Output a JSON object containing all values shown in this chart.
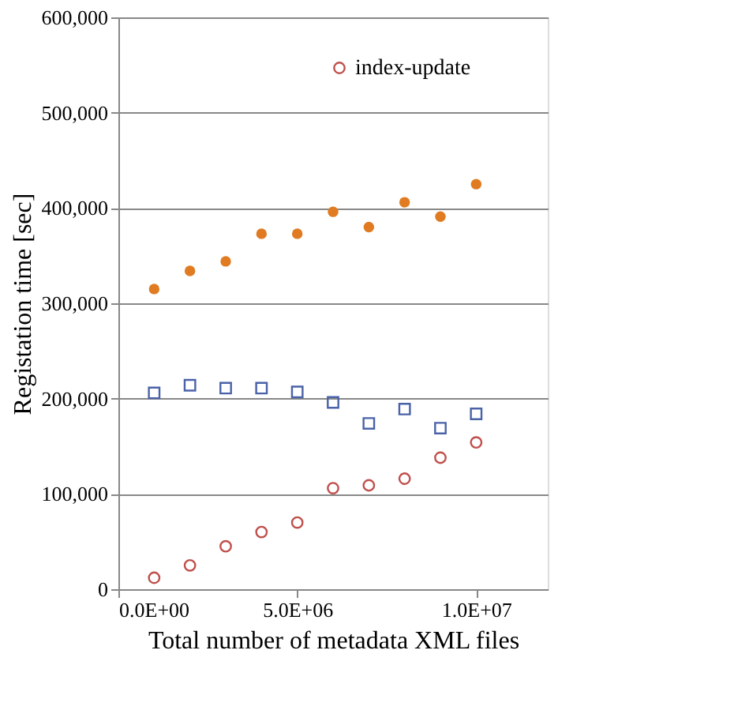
{
  "chart_data": {
    "type": "scatter",
    "xlabel": "Total number of metadata XML files",
    "ylabel": "Registation time [sec]",
    "x": [
      1000000,
      2000000,
      3000000,
      4000000,
      5000000,
      6000000,
      7000000,
      8000000,
      9000000,
      10000000
    ],
    "series": [
      {
        "color": "#4a62a8",
        "marker": "square",
        "values": [
          206000,
          214000,
          211000,
          211000,
          207000,
          196000,
          174000,
          189000,
          169000,
          184000
        ]
      },
      {
        "name": "index-update",
        "color": "#c0504d",
        "marker": "circle",
        "values": [
          12000,
          25000,
          45000,
          60000,
          70000,
          106000,
          109000,
          116000,
          138000,
          154000
        ]
      },
      {
        "color": "#e07b22",
        "marker": "circle",
        "values": [
          315000,
          334000,
          344000,
          373000,
          373000,
          396000,
          380000,
          406000,
          391000,
          425000
        ]
      }
    ],
    "xlim": [
      0,
      12000000
    ],
    "xticks": [
      {
        "value": 0,
        "label": "0.0E+00"
      },
      {
        "value": 5000000,
        "label": "5.0E+06"
      },
      {
        "value": 10000000,
        "label": "1.0E+07"
      }
    ],
    "ylim": [
      0,
      600000
    ],
    "yticks": [
      {
        "value": 0,
        "label": "0"
      },
      {
        "value": 100000,
        "label": "100,000"
      },
      {
        "value": 200000,
        "label": "200,000"
      },
      {
        "value": 300000,
        "label": "300,000"
      },
      {
        "value": 400000,
        "label": "400,000"
      },
      {
        "value": 500000,
        "label": "500,000"
      },
      {
        "value": 600000,
        "label": "600,000"
      }
    ],
    "grid": "y",
    "legend": "top right"
  }
}
